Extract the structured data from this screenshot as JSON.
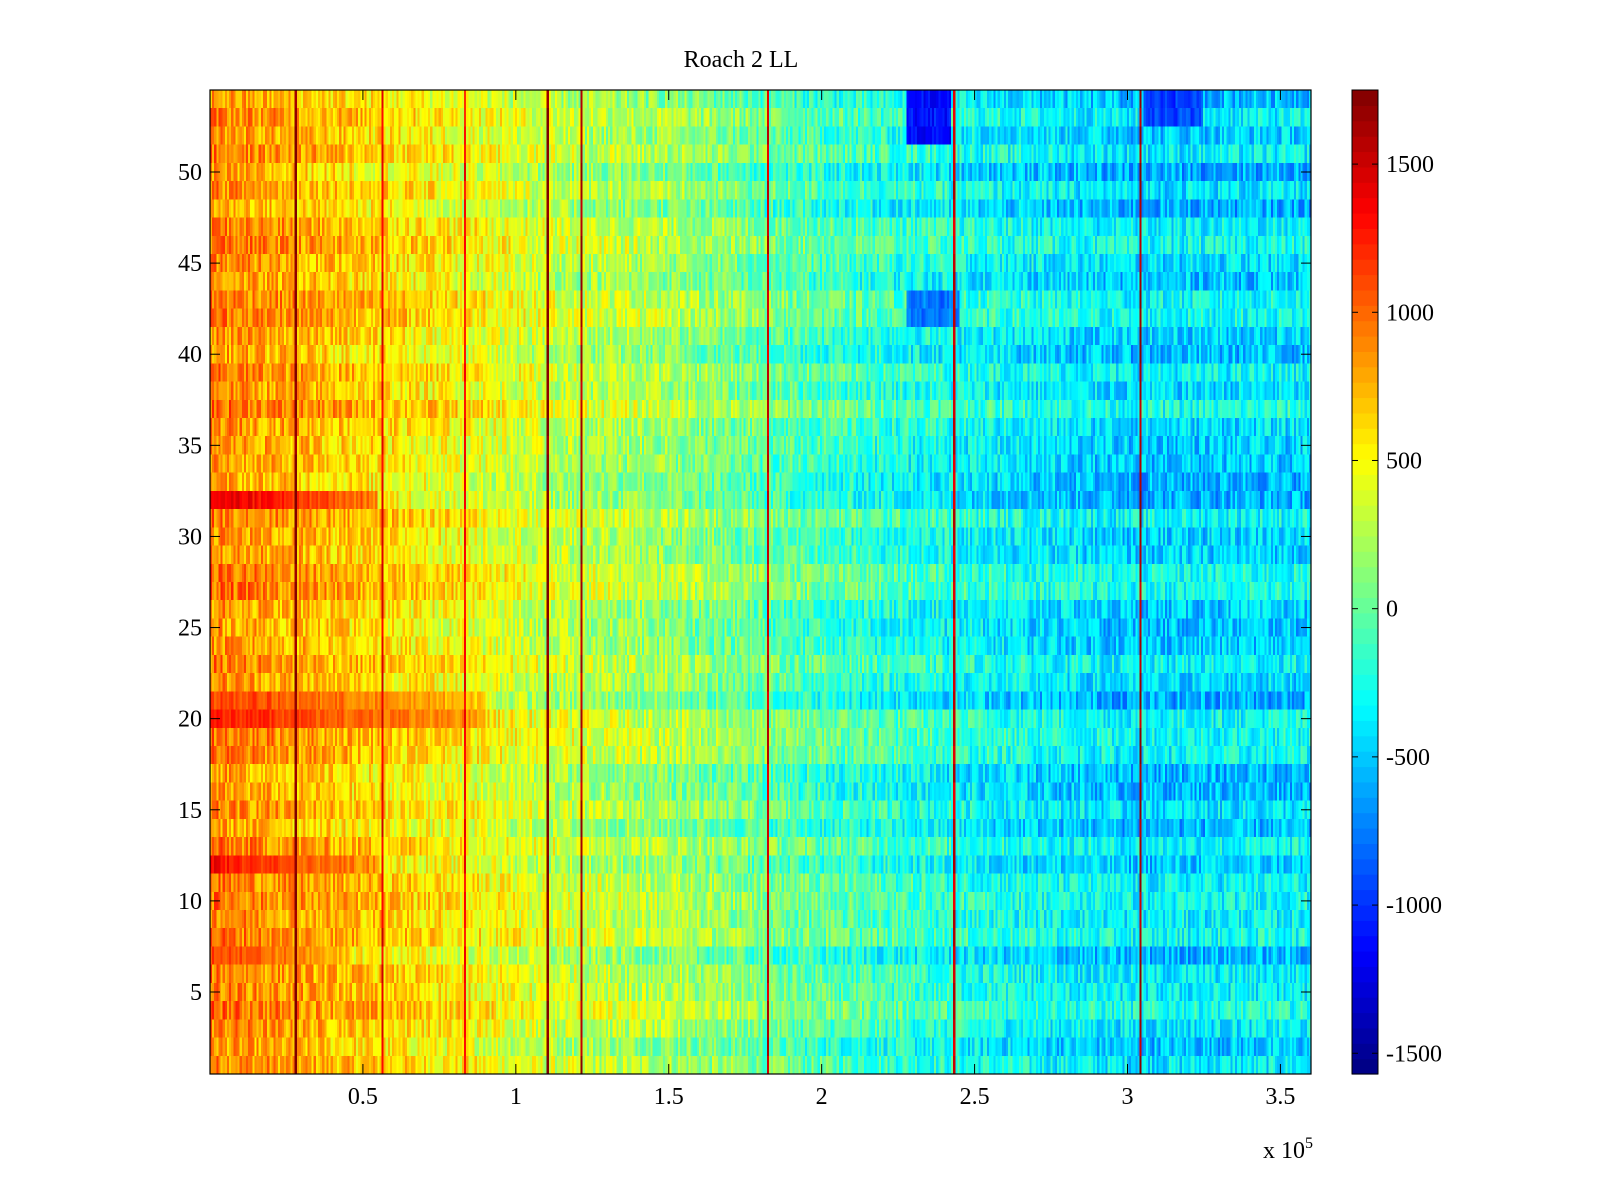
{
  "chart_data": {
    "type": "heatmap",
    "title": "Roach 2 LL",
    "xlabel": "",
    "ylabel": "",
    "x_multiplier_label": "x 10",
    "x_multiplier_exponent": "5",
    "xlim": [
      0,
      3.6
    ],
    "ylim": [
      0.5,
      54.5
    ],
    "rows": 54,
    "x_ticks": [
      0.5,
      1,
      1.5,
      2,
      2.5,
      3,
      3.5
    ],
    "x_tick_labels": [
      "0.5",
      "1",
      "1.5",
      "2",
      "2.5",
      "3",
      "3.5"
    ],
    "y_ticks": [
      5,
      10,
      15,
      20,
      25,
      30,
      35,
      40,
      45,
      50
    ],
    "y_tick_labels": [
      "5",
      "10",
      "15",
      "20",
      "25",
      "30",
      "35",
      "40",
      "45",
      "50"
    ],
    "clim": [
      -1570,
      1750
    ],
    "colorbar_ticks": [
      1500,
      1000,
      500,
      0,
      -500,
      -1000,
      -1500
    ],
    "colorbar_tick_labels": [
      "1500",
      "1000",
      "500",
      "0",
      "-500",
      "-1000",
      "-1500"
    ],
    "colormap": "jet",
    "trend_profile": {
      "x": [
        0,
        0.3,
        0.6,
        0.9,
        1.1,
        1.5,
        2.0,
        2.5,
        3.0,
        3.6
      ],
      "value": [
        900,
        750,
        600,
        450,
        320,
        180,
        -100,
        -300,
        -450,
        -420
      ]
    },
    "hot_rows": [
      {
        "row": 32,
        "value": 1700,
        "until_x": 0.55
      },
      {
        "row": 12,
        "value": 1500,
        "until_x": 0.55
      },
      {
        "row": 20,
        "value": 1400,
        "until_x": 0.9
      },
      {
        "row": 21,
        "value": 1300,
        "until_x": 0.9
      },
      {
        "row": 7,
        "value": 1300,
        "until_x": 0.4
      }
    ],
    "vertical_lines": [
      {
        "x": 0.28,
        "value": 1750
      },
      {
        "x": 0.56,
        "value": 1400
      },
      {
        "x": 0.83,
        "value": 1300
      },
      {
        "x": 1.1,
        "value": 1750
      },
      {
        "x": 1.21,
        "value": 1600
      },
      {
        "x": 1.82,
        "value": 1500
      },
      {
        "x": 2.43,
        "value": 1500
      },
      {
        "x": 3.04,
        "value": 1600
      }
    ],
    "cold_regions": [
      {
        "x": [
          2.28,
          2.42
        ],
        "rows": [
          52,
          54
        ],
        "value": -1500
      },
      {
        "x": [
          3.05,
          3.25
        ],
        "rows": [
          53,
          54
        ],
        "value": -1150
      },
      {
        "x": [
          2.28,
          2.45
        ],
        "rows": [
          42,
          43
        ],
        "value": -1050
      }
    ]
  }
}
